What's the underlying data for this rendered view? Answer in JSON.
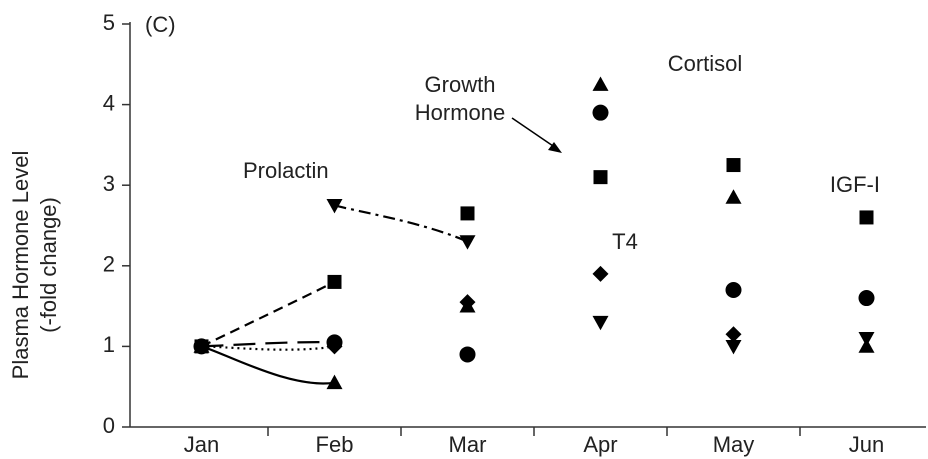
{
  "chart_data": {
    "type": "line",
    "annotation": "(C)",
    "ylabel": [
      "Plasma Hormone Level",
      "(-fold change)"
    ],
    "categories": [
      "Jan",
      "Feb",
      "Mar",
      "Apr",
      "May",
      "Jun"
    ],
    "ylim": [
      0,
      5
    ],
    "yticks": [
      0,
      1,
      2,
      3,
      4,
      5
    ],
    "series": [
      {
        "name": "Cortisol",
        "color": "#000000",
        "marker": "triangle-up",
        "line_style": "solid",
        "values": [
          1,
          0.55,
          1.5,
          4.25,
          2.85,
          1.0
        ]
      },
      {
        "name": "Growth Hormone",
        "color": "#000000",
        "marker": "circle",
        "line_style": "long-dash",
        "values": [
          1,
          1.05,
          0.9,
          3.9,
          1.7,
          1.6
        ]
      },
      {
        "name": "IGF-I",
        "color": "#000000",
        "marker": "square",
        "line_style": "dashed",
        "values": [
          1,
          1.8,
          2.65,
          3.1,
          3.25,
          2.6
        ]
      },
      {
        "name": "Prolactin",
        "color": "#000000",
        "marker": "triangle-down",
        "line_style": "dash-dot",
        "values": [
          null,
          2.75,
          2.3,
          1.3,
          1.0,
          1.1
        ]
      },
      {
        "name": "T4",
        "color": "#000000",
        "marker": "diamond",
        "line_style": "dotted",
        "values": [
          1,
          1.0,
          1.55,
          1.9,
          1.15,
          1.6
        ]
      }
    ]
  }
}
